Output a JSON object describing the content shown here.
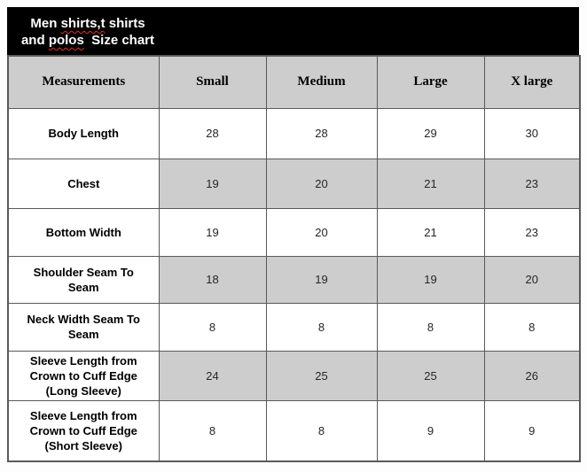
{
  "title": {
    "line1_part1": "Men ",
    "line1_misspelled": "shirts,t",
    "line1_part3": " shirts",
    "line2_part1": "and ",
    "line2_misspelled": "polos",
    "line2_part3": "  Size chart"
  },
  "table": {
    "columns": [
      "Measurements",
      "Small",
      "Medium",
      "Large",
      "X large"
    ],
    "rows": [
      {
        "label": "Body Length",
        "values": [
          "28",
          "28",
          "29",
          "30"
        ],
        "shaded": false
      },
      {
        "label": "Chest",
        "values": [
          "19",
          "20",
          "21",
          "23"
        ],
        "shaded": true
      },
      {
        "label": "Bottom Width",
        "values": [
          "19",
          "20",
          "21",
          "23"
        ],
        "shaded": false
      },
      {
        "label": "Shoulder Seam To Seam",
        "values": [
          "18",
          "19",
          "19",
          "20"
        ],
        "shaded": true
      },
      {
        "label": "Neck Width Seam To Seam",
        "values": [
          "8",
          "8",
          "8",
          "8"
        ],
        "shaded": false
      },
      {
        "label": "Sleeve Length from Crown to Cuff Edge (Long Sleeve)",
        "values": [
          "24",
          "25",
          "25",
          "26"
        ],
        "shaded": true
      },
      {
        "label": "Sleeve Length from Crown to Cuff Edge (Short Sleeve)",
        "values": [
          "8",
          "8",
          "9",
          "9"
        ],
        "shaded": false
      }
    ]
  },
  "colors": {
    "banner_background": "#000000",
    "banner_text": "#ffffff",
    "shaded_cell": "#cdcdcd",
    "border": "#595959",
    "squiggle": "#e03020"
  }
}
